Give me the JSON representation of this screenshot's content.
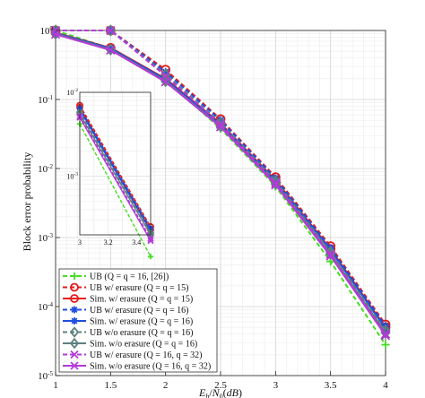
{
  "chart_data": {
    "type": "line",
    "xlabel": "E_b/N_0(dB)",
    "ylabel": "Block error probability",
    "xlim": [
      1,
      4
    ],
    "ylim": [
      1e-05,
      1
    ],
    "yscale": "log",
    "x_ticks": [
      "1",
      "1.5",
      "2",
      "2.5",
      "3",
      "3.5",
      "4"
    ],
    "y_ticks": [
      "10^0",
      "10^-1",
      "10^-2",
      "10^-3",
      "10^-4",
      "10^-5"
    ],
    "grid": true,
    "legend_position": "bottom-left",
    "x": [
      1,
      1.5,
      2,
      2.5,
      3,
      3.5,
      4
    ],
    "series": [
      {
        "name": "UB (Q = q = 16, [26])",
        "color": "#44dd22",
        "marker": "plus",
        "dash": true,
        "values": [
          1.0,
          0.55,
          0.19,
          0.038,
          0.0055,
          0.00045,
          2.8e-05
        ]
      },
      {
        "name": "UB w/ erasure (Q = q = 15)",
        "color": "#e31a1c",
        "marker": "circle",
        "dash": true,
        "values": [
          1.0,
          1.0,
          0.27,
          0.052,
          0.0075,
          0.00075,
          5.5e-05
        ]
      },
      {
        "name": "Sim. w/ erasure (Q = q = 15)",
        "color": "#e31a1c",
        "marker": "circle",
        "dash": false,
        "values": [
          0.93,
          0.56,
          0.2,
          0.045,
          0.0068,
          0.00068,
          5e-05
        ]
      },
      {
        "name": "UB w/ erasure (Q = q = 16)",
        "color": "#1f4fe0",
        "marker": "star",
        "dash": true,
        "values": [
          1.0,
          1.0,
          0.25,
          0.05,
          0.0072,
          0.0007,
          5.2e-05
        ]
      },
      {
        "name": "Sim. w/ erasure (Q = q = 16)",
        "color": "#1f4fe0",
        "marker": "star",
        "dash": false,
        "values": [
          0.92,
          0.55,
          0.195,
          0.043,
          0.0065,
          0.00065,
          4.8e-05
        ]
      },
      {
        "name": "UB w/o erasure (Q = q = 16)",
        "color": "#5f7f7f",
        "marker": "diamond",
        "dash": true,
        "values": [
          1.0,
          1.0,
          0.23,
          0.046,
          0.0066,
          0.00062,
          4.5e-05
        ]
      },
      {
        "name": "Sim. w/o erasure (Q = q = 16)",
        "color": "#5f7f7f",
        "marker": "diamond",
        "dash": false,
        "values": [
          0.9,
          0.53,
          0.185,
          0.041,
          0.006,
          0.00058,
          4.2e-05
        ]
      },
      {
        "name": "UB w/ erasure (Q = 16, q = 32)",
        "color": "#b23bd6",
        "marker": "x",
        "dash": true,
        "values": [
          1.0,
          1.0,
          0.22,
          0.044,
          0.0062,
          0.00057,
          4e-05
        ]
      },
      {
        "name": "Sim. w/o erasure (Q = 16, q = 32)",
        "color": "#b23bd6",
        "marker": "x",
        "dash": false,
        "values": [
          0.88,
          0.52,
          0.18,
          0.04,
          0.0058,
          0.00054,
          3.8e-05
        ]
      }
    ],
    "inset": {
      "xlim": [
        3,
        3.5
      ],
      "ylim": [
        0.0002,
        0.01
      ],
      "x_ticks": [
        "3",
        "3.2",
        "3.4"
      ],
      "y_ticks": [
        "10^-2",
        "10^-3"
      ],
      "x": [
        3,
        3.5
      ],
      "values": [
        [
          0.0042,
          0.00011
        ],
        [
          0.007,
          0.00025
        ],
        [
          0.0066,
          0.00023
        ],
        [
          0.0065,
          0.00024
        ],
        [
          0.0062,
          0.00022
        ],
        [
          0.0058,
          0.00021
        ],
        [
          0.0055,
          0.0002
        ],
        [
          0.0052,
          0.00018
        ],
        [
          0.005,
          0.00017
        ]
      ]
    }
  }
}
